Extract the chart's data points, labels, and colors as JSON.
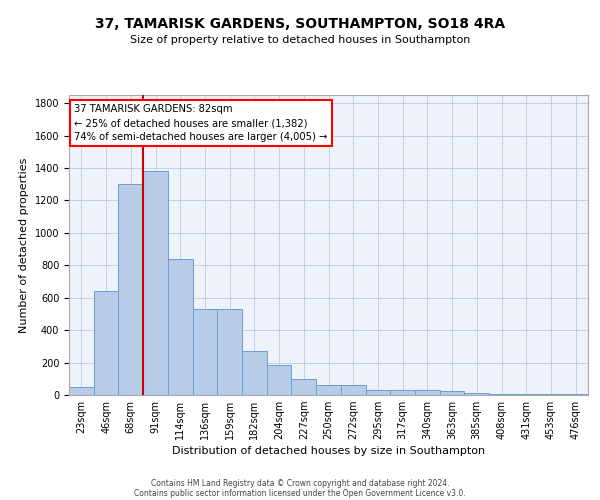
{
  "title": "37, TAMARISK GARDENS, SOUTHAMPTON, SO18 4RA",
  "subtitle": "Size of property relative to detached houses in Southampton",
  "xlabel": "Distribution of detached houses by size in Southampton",
  "ylabel": "Number of detached properties",
  "footer_line1": "Contains HM Land Registry data © Crown copyright and database right 2024.",
  "footer_line2": "Contains public sector information licensed under the Open Government Licence v3.0.",
  "bin_labels": [
    "23sqm",
    "46sqm",
    "68sqm",
    "91sqm",
    "114sqm",
    "136sqm",
    "159sqm",
    "182sqm",
    "204sqm",
    "227sqm",
    "250sqm",
    "272sqm",
    "295sqm",
    "317sqm",
    "340sqm",
    "363sqm",
    "385sqm",
    "408sqm",
    "431sqm",
    "453sqm",
    "476sqm"
  ],
  "bar_values": [
    50,
    640,
    1300,
    1380,
    840,
    530,
    530,
    270,
    185,
    100,
    60,
    60,
    30,
    30,
    30,
    25,
    15,
    5,
    5,
    5,
    5
  ],
  "bar_color": "#b8cce8",
  "bar_edge_color": "#6a9fd8",
  "vline_color": "#cc0000",
  "vline_x_index": 2.5,
  "ylim": [
    0,
    1850
  ],
  "yticks": [
    0,
    200,
    400,
    600,
    800,
    1000,
    1200,
    1400,
    1600,
    1800
  ],
  "annotation_text": "37 TAMARISK GARDENS: 82sqm\n← 25% of detached houses are smaller (1,382)\n74% of semi-detached houses are larger (4,005) →",
  "bg_color": "#eef2fa",
  "grid_color": "#c5cde8",
  "title_fontsize": 10,
  "subtitle_fontsize": 8,
  "ylabel_fontsize": 8,
  "xlabel_fontsize": 8,
  "tick_fontsize": 7,
  "footer_fontsize": 5.5
}
